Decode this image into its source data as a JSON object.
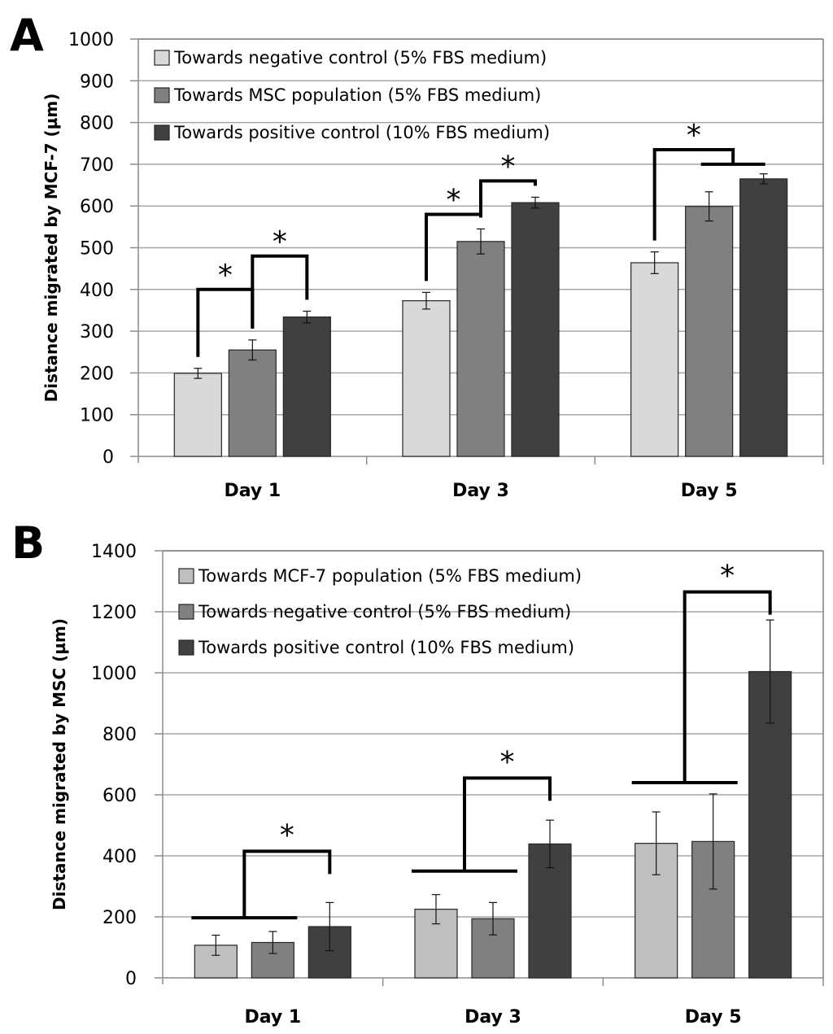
{
  "chart_data": [
    {
      "panel_label": "A",
      "type": "bar",
      "title": "",
      "xlabel": "",
      "ylabel": "Distance migrated by MCF-7 (µm)",
      "ylim": [
        0,
        1000
      ],
      "yticks": [
        0,
        100,
        200,
        300,
        400,
        500,
        600,
        700,
        800,
        900,
        1000
      ],
      "grid": true,
      "legend_position": "top-left",
      "categories": [
        "Day 1",
        "Day 3",
        "Day 5"
      ],
      "series": [
        {
          "name": "Towards negative control (5% FBS medium)",
          "color": "#d9d9d9",
          "values": [
            199,
            373,
            464
          ],
          "errors": [
            12,
            20,
            26
          ]
        },
        {
          "name": "Towards MSC population (5% FBS medium)",
          "color": "#808080",
          "values": [
            255,
            515,
            599
          ],
          "errors": [
            24,
            30,
            35
          ]
        },
        {
          "name": "Towards positive control (10% FBS medium)",
          "color": "#404040",
          "values": [
            334,
            608,
            665
          ],
          "errors": [
            14,
            13,
            12
          ]
        }
      ],
      "significance": [
        {
          "category": 0,
          "type": "pair",
          "from": 0,
          "to": 1,
          "level": 400,
          "label": "*"
        },
        {
          "category": 0,
          "type": "pair",
          "from": 1,
          "to": 2,
          "level": 480,
          "label": "*"
        },
        {
          "category": 1,
          "type": "pair",
          "from": 0,
          "to": 1,
          "level": 580,
          "label": "*"
        },
        {
          "category": 1,
          "type": "pair",
          "from": 1,
          "to": 2,
          "level": 660,
          "label": "*"
        },
        {
          "category": 2,
          "type": "group",
          "from": 0,
          "to_group": [
            1,
            2
          ],
          "level": 735,
          "group_level": 700,
          "label": "*"
        }
      ]
    },
    {
      "panel_label": "B",
      "type": "bar",
      "title": "",
      "xlabel": "",
      "ylabel": "Distance migrated by MSC (µm)",
      "ylim": [
        0,
        1400
      ],
      "yticks": [
        0,
        200,
        400,
        600,
        800,
        1000,
        1200,
        1400
      ],
      "grid": true,
      "legend_position": "top-left",
      "categories": [
        "Day 1",
        "Day 3",
        "Day 5"
      ],
      "series": [
        {
          "name": "Towards MCF-7 population (5% FBS medium)",
          "color": "#bfbfbf",
          "values": [
            107,
            225,
            441
          ],
          "errors": [
            33,
            48,
            103
          ]
        },
        {
          "name": "Towards negative control (5% FBS medium)",
          "color": "#808080",
          "values": [
            116,
            194,
            447
          ],
          "errors": [
            36,
            53,
            156
          ]
        },
        {
          "name": "Towards positive control (10% FBS medium)",
          "color": "#404040",
          "values": [
            168,
            439,
            1004
          ],
          "errors": [
            79,
            78,
            169
          ]
        }
      ],
      "significance": [
        {
          "category": 0,
          "type": "group",
          "group": [
            0,
            1
          ],
          "to": 2,
          "group_level": 197,
          "level": 415,
          "label": "*"
        },
        {
          "category": 1,
          "type": "group",
          "group": [
            0,
            1
          ],
          "to": 2,
          "group_level": 350,
          "level": 655,
          "label": "*"
        },
        {
          "category": 2,
          "type": "group",
          "group": [
            0,
            1
          ],
          "to": 2,
          "group_level": 640,
          "level": 1265,
          "label": "*"
        }
      ]
    }
  ]
}
